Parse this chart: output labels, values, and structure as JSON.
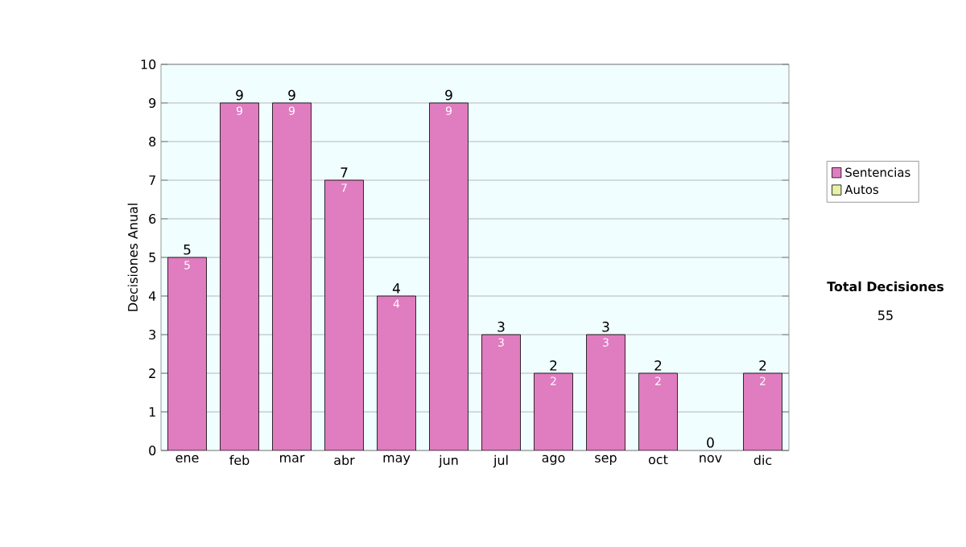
{
  "chart_data": {
    "type": "bar",
    "stacked": true,
    "ylabel": "Decisiones Anual",
    "categories": [
      "ene",
      "feb",
      "mar",
      "abr",
      "may",
      "jun",
      "jul",
      "ago",
      "sep",
      "oct",
      "nov",
      "dic"
    ],
    "series": [
      {
        "name": "Sentencias",
        "color": "#e07cc0",
        "values": [
          5,
          9,
          9,
          7,
          4,
          9,
          3,
          2,
          3,
          2,
          0,
          2
        ],
        "value_labels": [
          "5",
          "9",
          "9",
          "7",
          "4",
          "9",
          "3",
          "2",
          "3",
          "2",
          null,
          "2"
        ]
      },
      {
        "name": "Autos",
        "color": "#e8f0a8",
        "values": [
          0,
          0,
          0,
          0,
          0,
          0,
          0,
          0,
          0,
          0,
          0,
          0
        ]
      }
    ],
    "totals": [
      "5",
      "9",
      "9",
      "7",
      "4",
      "9",
      "3",
      "2",
      "3",
      "2",
      "0",
      "2"
    ],
    "ylim": [
      0,
      10
    ],
    "yticks": [
      0,
      1,
      2,
      3,
      4,
      5,
      6,
      7,
      8,
      9,
      10
    ],
    "grid": "y",
    "legend": "right",
    "annotations": [
      "Total Decisiones",
      "55"
    ]
  }
}
